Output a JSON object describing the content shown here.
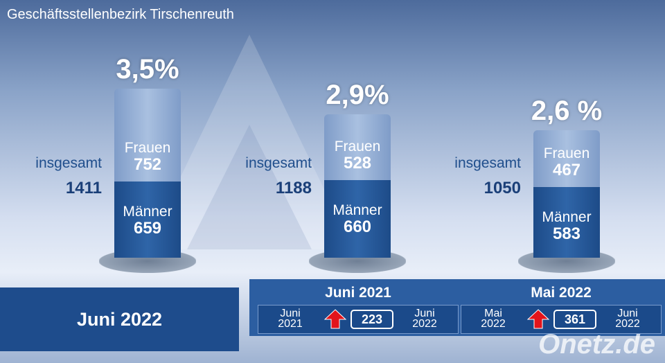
{
  "header": {
    "title": "Geschäftsstellenbezirk Tirschenreuth"
  },
  "groups": [
    {
      "rate": "3,5%",
      "total_label": "insgesamt",
      "total": 1411,
      "women_label": "Frauen",
      "women": 752,
      "men_label": "Männer",
      "men": 659
    },
    {
      "rate": "2,9%",
      "total_label": "insgesamt",
      "total": 1188,
      "women_label": "Frauen",
      "women": 528,
      "men_label": "Männer",
      "men": 660
    },
    {
      "rate": "2,6 %",
      "total_label": "insgesamt",
      "total": 1050,
      "women_label": "Frauen",
      "women": 467,
      "men_label": "Männer",
      "men": 583
    }
  ],
  "footer": {
    "period": "Juni 2022",
    "comparisons": [
      {
        "title": "Juni 2021",
        "from": "Juni 2021",
        "change": 223,
        "to": "Juni 2022"
      },
      {
        "title": "Mai 2022",
        "from": "Mai 2022",
        "change": 361,
        "to": "Juni 2022"
      }
    ]
  },
  "watermark": "Onetz.de"
}
